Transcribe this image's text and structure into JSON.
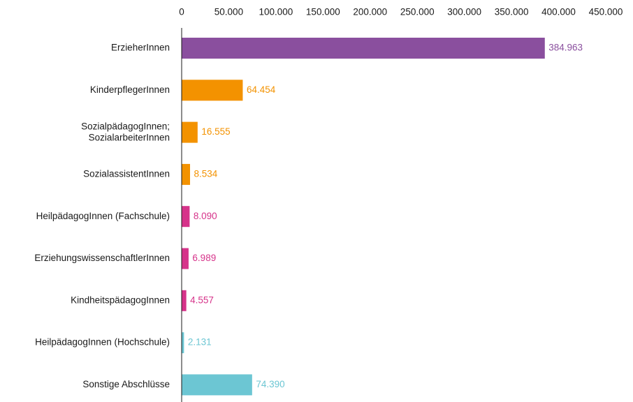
{
  "chart_data": {
    "type": "hbar",
    "categories": [
      "ErzieherInnen",
      "KinderpflegerInnen",
      "SozialpädagogInnen;\nSozialarbeiterInnen",
      "SozialassistentInnen",
      "HeilpädagogInnen (Fachschule)",
      "ErziehungswissenschaftlerInnen",
      "KindheitspädagogInnen",
      "HeilpädagogInnen (Hochschule)",
      "Sonstige Abschlüsse"
    ],
    "values": [
      384963,
      64454,
      16555,
      8534,
      8090,
      6989,
      4557,
      2131,
      74390
    ],
    "value_labels": [
      "384.963",
      "64.454",
      "16.555",
      "8.534",
      "8.090",
      "6.989",
      "4.557",
      "2.131",
      "74.390"
    ],
    "colors": [
      "#8a4f9e",
      "#f39200",
      "#f39200",
      "#f39200",
      "#d6338a",
      "#d6338a",
      "#d6338a",
      "#6cc6d3",
      "#6cc6d3"
    ],
    "xlim": [
      0,
      450000
    ],
    "xticks": [
      0,
      {
        "value": 50000,
        "label": "50.000"
      },
      {
        "value": 100000,
        "label": "100.000"
      },
      {
        "value": 150000,
        "label": "150.000"
      },
      {
        "value": 200000,
        "label": "200.000"
      },
      {
        "value": 250000,
        "label": "250.000"
      },
      {
        "value": 300000,
        "label": "300.000"
      },
      {
        "value": 350000,
        "label": "350.000"
      },
      {
        "value": 400000,
        "label": "400.000"
      },
      {
        "value": 450000,
        "label": "450.000"
      }
    ],
    "grid": false
  }
}
